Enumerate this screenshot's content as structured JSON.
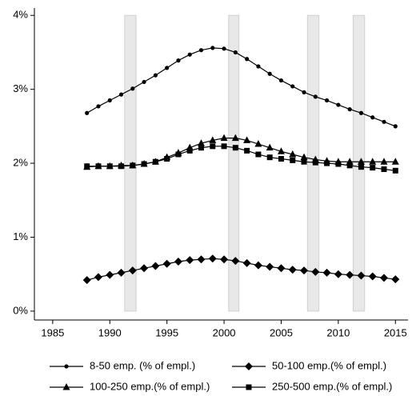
{
  "chart_data": {
    "type": "line",
    "x": [
      1988,
      1989,
      1990,
      1991,
      1992,
      1993,
      1994,
      1995,
      1996,
      1997,
      1998,
      1999,
      2000,
      2001,
      2002,
      2003,
      2004,
      2005,
      2006,
      2007,
      2008,
      2009,
      2010,
      2011,
      2012,
      2013,
      2014,
      2015
    ],
    "series": [
      {
        "name": "8-50 emp. (% of empl.)",
        "color": "#000000",
        "marker": "circle",
        "values": [
          2.68,
          2.77,
          2.85,
          2.93,
          3.01,
          3.1,
          3.19,
          3.29,
          3.39,
          3.47,
          3.53,
          3.56,
          3.55,
          3.5,
          3.41,
          3.31,
          3.21,
          3.12,
          3.04,
          2.96,
          2.9,
          2.85,
          2.79,
          2.73,
          2.68,
          2.62,
          2.56,
          2.5
        ]
      },
      {
        "name": "50-100 emp.(% of empl.)",
        "color": "#000000",
        "marker": "diamond",
        "values": [
          0.42,
          0.46,
          0.49,
          0.52,
          0.55,
          0.58,
          0.61,
          0.64,
          0.67,
          0.69,
          0.7,
          0.71,
          0.7,
          0.68,
          0.65,
          0.62,
          0.6,
          0.58,
          0.56,
          0.55,
          0.53,
          0.52,
          0.5,
          0.49,
          0.48,
          0.47,
          0.45,
          0.43
        ]
      },
      {
        "name": "100-250 emp.(% of empl.)",
        "color": "#000000",
        "marker": "triangle",
        "values": [
          1.95,
          1.96,
          1.96,
          1.97,
          1.97,
          1.99,
          2.02,
          2.08,
          2.14,
          2.21,
          2.27,
          2.31,
          2.34,
          2.34,
          2.31,
          2.26,
          2.21,
          2.16,
          2.12,
          2.08,
          2.05,
          2.03,
          2.02,
          2.02,
          2.02,
          2.02,
          2.02,
          2.02
        ]
      },
      {
        "name": "250-500 emp.(% of empl.)",
        "color": "#000000",
        "marker": "square",
        "values": [
          1.96,
          1.96,
          1.96,
          1.96,
          1.97,
          1.99,
          2.02,
          2.06,
          2.12,
          2.17,
          2.21,
          2.23,
          2.23,
          2.21,
          2.17,
          2.12,
          2.08,
          2.06,
          2.04,
          2.02,
          2.01,
          2.0,
          1.99,
          1.97,
          1.95,
          1.94,
          1.92,
          1.9
        ]
      }
    ],
    "shaded_periods": [
      [
        1991.3,
        1992.3
      ],
      [
        2000.4,
        2001.3
      ],
      [
        2007.3,
        2008.3
      ],
      [
        2011.3,
        2012.3
      ]
    ],
    "shade_color": "#e8e8e8",
    "xlim": [
      1983.4,
      2016.1
    ],
    "xticks": [
      1985,
      1990,
      1995,
      2000,
      2005,
      2010,
      2015
    ],
    "ylim": [
      -0.12,
      4.1
    ],
    "yticks": [
      {
        "value": 0,
        "label": "0%"
      },
      {
        "value": 1,
        "label": "1%"
      },
      {
        "value": 2,
        "label": "2%"
      },
      {
        "value": 3,
        "label": "3%"
      },
      {
        "value": 4,
        "label": "4%"
      }
    ],
    "grid": false,
    "legend": "bottom"
  }
}
